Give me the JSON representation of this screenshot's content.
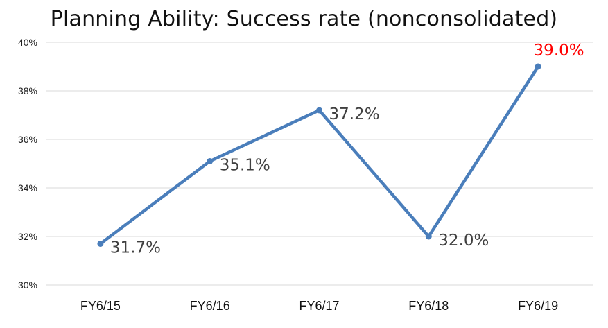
{
  "chart_data": {
    "type": "line",
    "title": "Planning Ability: Success rate (nonconsolidated)",
    "xlabel": "",
    "ylabel": "",
    "categories": [
      "FY6/15",
      "FY6/16",
      "FY6/17",
      "FY6/18",
      "FY6/19"
    ],
    "series": [
      {
        "values": [
          31.7,
          35.1,
          37.2,
          32.0,
          39.0
        ],
        "color": "#4a7ebb"
      }
    ],
    "data_labels": [
      "31.7%",
      "35.1%",
      "37.2%",
      "32.0%",
      "39.0%"
    ],
    "highlight_label_index": 4,
    "highlight_color": "#ff0000",
    "label_color": "#404040",
    "ylim": [
      30,
      40
    ],
    "yticks": [
      30,
      32,
      34,
      36,
      38,
      40
    ],
    "ytick_labels": [
      "30%",
      "32%",
      "34%",
      "36%",
      "38%",
      "40%"
    ],
    "grid": true,
    "legend": "none"
  }
}
